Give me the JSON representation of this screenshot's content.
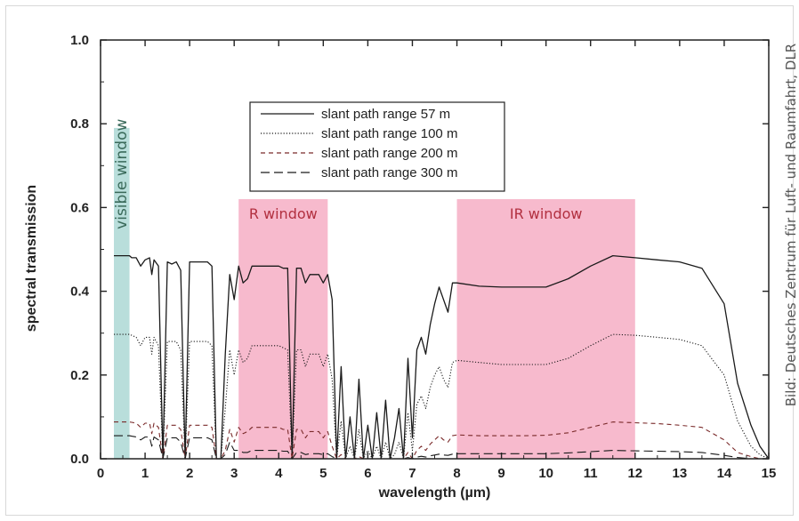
{
  "colors": {
    "axis": "#222222",
    "line": "#1a1a1a",
    "dash_200": "#7a2a2a",
    "window_pink": "#f6aec4",
    "window_teal": "#a8d6d2",
    "window_label": "#b23040",
    "visible_label": "#3a6a5a"
  },
  "credit": "Bild: Deutsches Zentrum für Luft- und Raumfahrt, DLR",
  "chart_data": {
    "type": "line",
    "xlabel": "wavelength (µm)",
    "ylabel": "spectral transmission",
    "xlim": [
      0,
      15
    ],
    "ylim": [
      0,
      1.0
    ],
    "xticks": [
      "0",
      "1",
      "2",
      "3",
      "4",
      "5",
      "6",
      "7",
      "8",
      "9",
      "10",
      "11",
      "12",
      "13",
      "14",
      "15"
    ],
    "yticks": [
      "0.0",
      "0.2",
      "0.4",
      "0.6",
      "0.8",
      "1.0"
    ],
    "grid": false,
    "legend_position": "top-center",
    "windows": [
      {
        "label": "visible window",
        "x0": 0.3,
        "x1": 0.65,
        "y_top": 0.79,
        "color": "teal"
      },
      {
        "label": "R window",
        "x0": 3.1,
        "x1": 5.1,
        "y_top": 0.62,
        "color": "pink"
      },
      {
        "label": "IR window",
        "x0": 8.0,
        "x1": 12.0,
        "y_top": 0.62,
        "color": "pink"
      }
    ],
    "x": [
      0.3,
      0.5,
      0.65,
      0.7,
      0.8,
      0.9,
      1.0,
      1.1,
      1.15,
      1.2,
      1.3,
      1.4,
      1.5,
      1.6,
      1.7,
      1.8,
      1.9,
      2.0,
      2.1,
      2.2,
      2.3,
      2.4,
      2.5,
      2.6,
      2.7,
      2.8,
      2.9,
      3.0,
      3.1,
      3.2,
      3.3,
      3.4,
      3.5,
      3.6,
      3.7,
      3.8,
      3.9,
      4.0,
      4.1,
      4.2,
      4.3,
      4.4,
      4.5,
      4.6,
      4.7,
      4.8,
      4.9,
      5.0,
      5.1,
      5.2,
      5.3,
      5.4,
      5.5,
      5.6,
      5.7,
      5.8,
      5.9,
      6.0,
      6.1,
      6.2,
      6.3,
      6.4,
      6.5,
      6.6,
      6.7,
      6.8,
      6.9,
      7.0,
      7.1,
      7.2,
      7.3,
      7.4,
      7.5,
      7.6,
      7.7,
      7.8,
      7.9,
      8.0,
      8.5,
      9.0,
      9.5,
      10.0,
      10.5,
      11.0,
      11.5,
      12.0,
      12.5,
      13.0,
      13.5,
      14.0,
      14.3,
      14.6,
      14.8,
      15.0
    ],
    "series": [
      {
        "name": "slant path range  57 m",
        "style": "solid",
        "values": [
          0.485,
          0.485,
          0.485,
          0.48,
          0.48,
          0.46,
          0.475,
          0.48,
          0.44,
          0.475,
          0.46,
          0.0,
          0.47,
          0.465,
          0.47,
          0.45,
          0.0,
          0.47,
          0.47,
          0.47,
          0.47,
          0.47,
          0.46,
          0.0,
          0.0,
          0.25,
          0.44,
          0.38,
          0.46,
          0.42,
          0.43,
          0.46,
          0.46,
          0.46,
          0.46,
          0.46,
          0.46,
          0.46,
          0.455,
          0.455,
          0.0,
          0.455,
          0.455,
          0.42,
          0.44,
          0.44,
          0.44,
          0.42,
          0.44,
          0.38,
          0.0,
          0.22,
          0.0,
          0.1,
          0.0,
          0.19,
          0.0,
          0.08,
          0.0,
          0.11,
          0.0,
          0.14,
          0.0,
          0.05,
          0.12,
          0.0,
          0.24,
          0.05,
          0.26,
          0.29,
          0.25,
          0.32,
          0.37,
          0.41,
          0.38,
          0.35,
          0.42,
          0.42,
          0.412,
          0.41,
          0.41,
          0.41,
          0.43,
          0.46,
          0.485,
          0.48,
          0.475,
          0.47,
          0.455,
          0.37,
          0.18,
          0.08,
          0.03,
          0.0
        ]
      },
      {
        "name": "slant path range 100 m",
        "style": "dotted",
        "values": [
          0.297,
          0.297,
          0.297,
          0.295,
          0.29,
          0.27,
          0.29,
          0.29,
          0.25,
          0.29,
          0.27,
          0.0,
          0.28,
          0.28,
          0.28,
          0.26,
          0.0,
          0.28,
          0.28,
          0.28,
          0.28,
          0.28,
          0.27,
          0.0,
          0.0,
          0.12,
          0.26,
          0.2,
          0.26,
          0.23,
          0.24,
          0.27,
          0.27,
          0.27,
          0.27,
          0.27,
          0.27,
          0.27,
          0.265,
          0.26,
          0.0,
          0.26,
          0.26,
          0.22,
          0.25,
          0.25,
          0.25,
          0.22,
          0.25,
          0.19,
          0.0,
          0.09,
          0.0,
          0.03,
          0.0,
          0.07,
          0.0,
          0.02,
          0.0,
          0.03,
          0.0,
          0.04,
          0.0,
          0.01,
          0.04,
          0.0,
          0.11,
          0.02,
          0.13,
          0.15,
          0.12,
          0.17,
          0.2,
          0.22,
          0.19,
          0.17,
          0.23,
          0.235,
          0.23,
          0.225,
          0.225,
          0.225,
          0.24,
          0.27,
          0.297,
          0.295,
          0.29,
          0.285,
          0.27,
          0.2,
          0.09,
          0.03,
          0.01,
          0.0
        ]
      },
      {
        "name": "slant path range 200 m",
        "style": "dashed-short",
        "values": [
          0.088,
          0.088,
          0.088,
          0.087,
          0.085,
          0.075,
          0.085,
          0.085,
          0.06,
          0.085,
          0.075,
          0.0,
          0.08,
          0.08,
          0.08,
          0.07,
          0.0,
          0.08,
          0.08,
          0.08,
          0.08,
          0.08,
          0.075,
          0.0,
          0.0,
          0.02,
          0.07,
          0.04,
          0.075,
          0.06,
          0.065,
          0.075,
          0.075,
          0.075,
          0.075,
          0.075,
          0.075,
          0.075,
          0.07,
          0.07,
          0.0,
          0.07,
          0.07,
          0.05,
          0.065,
          0.065,
          0.065,
          0.05,
          0.065,
          0.03,
          0.0,
          0.01,
          0.0,
          0.0,
          0.0,
          0.005,
          0.0,
          0.0,
          0.0,
          0.0,
          0.0,
          0.0,
          0.0,
          0.0,
          0.0,
          0.0,
          0.015,
          0.0,
          0.02,
          0.03,
          0.02,
          0.035,
          0.045,
          0.055,
          0.045,
          0.04,
          0.055,
          0.057,
          0.055,
          0.055,
          0.055,
          0.056,
          0.062,
          0.075,
          0.088,
          0.086,
          0.084,
          0.08,
          0.075,
          0.045,
          0.015,
          0.005,
          0.0,
          0.0
        ]
      },
      {
        "name": "slant path range 300 m",
        "style": "dashed-long",
        "values": [
          0.055,
          0.055,
          0.055,
          0.054,
          0.052,
          0.045,
          0.052,
          0.052,
          0.03,
          0.052,
          0.045,
          0.0,
          0.05,
          0.05,
          0.05,
          0.04,
          0.0,
          0.05,
          0.05,
          0.05,
          0.05,
          0.05,
          0.045,
          0.0,
          0.0,
          0.01,
          0.04,
          0.02,
          0.02,
          0.015,
          0.015,
          0.02,
          0.02,
          0.02,
          0.02,
          0.02,
          0.02,
          0.02,
          0.018,
          0.018,
          0.0,
          0.015,
          0.015,
          0.01,
          0.012,
          0.012,
          0.012,
          0.01,
          0.012,
          0.005,
          0.0,
          0.0,
          0.0,
          0.0,
          0.0,
          0.0,
          0.0,
          0.0,
          0.0,
          0.0,
          0.0,
          0.0,
          0.0,
          0.0,
          0.0,
          0.0,
          0.003,
          0.0,
          0.004,
          0.006,
          0.004,
          0.007,
          0.009,
          0.011,
          0.009,
          0.008,
          0.011,
          0.012,
          0.012,
          0.012,
          0.012,
          0.012,
          0.014,
          0.017,
          0.02,
          0.019,
          0.018,
          0.017,
          0.015,
          0.008,
          0.003,
          0.0,
          0.0,
          0.0
        ]
      }
    ]
  }
}
